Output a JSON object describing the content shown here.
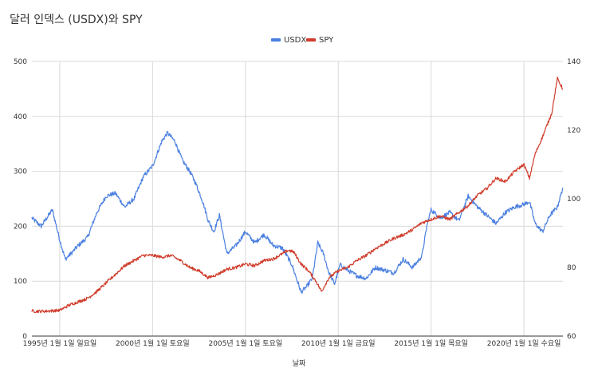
{
  "chart_data": {
    "type": "line",
    "title": "달러 인덱스 (USDX)와 SPY",
    "xlabel": "날짜",
    "x_ticks": [
      "1995년 1월 1일 일요일",
      "2000년 1월 1일 토요일",
      "2005년 1월 1일 토요일",
      "2010년 1월 1일 금요일",
      "2015년 1월 1일 목요일",
      "2020년 1월 1일 수요일"
    ],
    "x_tick_years": [
      1995,
      2000,
      2005,
      2010,
      2015,
      2020
    ],
    "xlim": [
      1993.5,
      2022.1
    ],
    "left_axis": {
      "ylim": [
        0,
        500
      ],
      "ticks": [
        "0",
        "100",
        "200",
        "300",
        "400",
        "500"
      ],
      "tick_values": [
        0,
        100,
        200,
        300,
        400,
        500
      ]
    },
    "right_axis": {
      "ylim": [
        60,
        140
      ],
      "ticks": [
        "60",
        "80",
        "100",
        "120",
        "140"
      ],
      "tick_values": [
        60,
        80,
        100,
        120,
        140
      ]
    },
    "legend": {
      "placement": "top-center",
      "entries": [
        "USDX",
        "SPY"
      ]
    },
    "grid": true,
    "series": [
      {
        "name": "USDX",
        "axis": "left",
        "color": "#4a7fe0",
        "x": [
          1993.5,
          1994.0,
          1994.6,
          1995.0,
          1995.3,
          1995.6,
          1996.0,
          1996.5,
          1997.0,
          1997.5,
          1998.0,
          1998.5,
          1999.0,
          1999.5,
          2000.0,
          2000.5,
          2000.8,
          2001.2,
          2001.6,
          2002.0,
          2002.3,
          2002.7,
          2003.0,
          2003.3,
          2003.6,
          2004.0,
          2004.5,
          2005.0,
          2005.5,
          2006.0,
          2006.5,
          2007.0,
          2007.5,
          2007.8,
          2008.0,
          2008.3,
          2008.6,
          2008.9,
          2009.2,
          2009.5,
          2009.8,
          2010.1,
          2010.5,
          2011.0,
          2011.5,
          2012.0,
          2012.5,
          2013.0,
          2013.5,
          2014.0,
          2014.5,
          2014.8,
          2015.0,
          2015.5,
          2016.0,
          2016.5,
          2017.0,
          2017.5,
          2018.0,
          2018.5,
          2019.0,
          2019.5,
          2020.0,
          2020.3,
          2020.6,
          2021.0,
          2021.4,
          2021.8,
          2022.1
        ],
        "y": [
          215,
          200,
          230,
          175,
          140,
          150,
          165,
          180,
          225,
          255,
          260,
          235,
          250,
          290,
          310,
          355,
          370,
          355,
          320,
          300,
          280,
          245,
          210,
          190,
          220,
          150,
          165,
          190,
          170,
          185,
          165,
          160,
          130,
          100,
          80,
          90,
          105,
          170,
          150,
          115,
          95,
          130,
          120,
          110,
          105,
          125,
          120,
          115,
          140,
          125,
          145,
          205,
          230,
          215,
          225,
          210,
          255,
          235,
          220,
          205,
          225,
          235,
          240,
          245,
          205,
          190,
          220,
          235,
          270
        ]
      },
      {
        "name": "SPY",
        "axis": "right",
        "color": "#d03c2c",
        "x": [
          1993.5,
          1994.0,
          1995.0,
          1995.5,
          1996.0,
          1996.5,
          1997.0,
          1997.5,
          1998.0,
          1998.5,
          1999.0,
          1999.5,
          2000.0,
          2000.5,
          2001.0,
          2001.5,
          2002.0,
          2002.5,
          2003.0,
          2003.5,
          2004.0,
          2004.5,
          2005.0,
          2005.5,
          2006.0,
          2006.5,
          2007.0,
          2007.3,
          2007.6,
          2008.0,
          2008.4,
          2008.8,
          2009.1,
          2009.5,
          2010.0,
          2010.5,
          2011.0,
          2011.5,
          2012.0,
          2012.5,
          2013.0,
          2013.5,
          2014.0,
          2014.5,
          2015.0,
          2015.5,
          2016.0,
          2016.5,
          2017.0,
          2017.5,
          2018.0,
          2018.5,
          2019.0,
          2019.5,
          2020.0,
          2020.3,
          2020.6,
          2021.0,
          2021.5,
          2021.8,
          2022.1
        ],
        "y": [
          67.3,
          67.2,
          67.5,
          69,
          70,
          71,
          73,
          75.5,
          78,
          80.5,
          82,
          83.5,
          83.5,
          83,
          83.5,
          82,
          80,
          79,
          77,
          78,
          79.5,
          80,
          81,
          80.5,
          82,
          82.5,
          84,
          85,
          84.5,
          81,
          79,
          76,
          73,
          77,
          79,
          80,
          82,
          83.5,
          85.5,
          87,
          88.5,
          89.5,
          91,
          93,
          94,
          95,
          94,
          96,
          98,
          101,
          103,
          106,
          105,
          108,
          110,
          106,
          113,
          118,
          125,
          135,
          132
        ]
      }
    ]
  }
}
